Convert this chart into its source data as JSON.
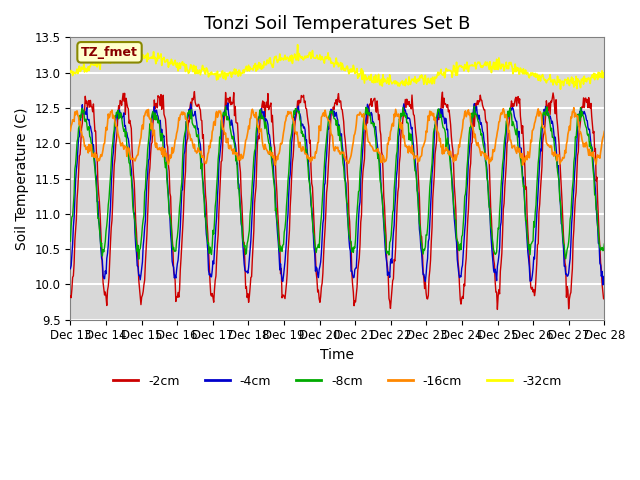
{
  "title": "Tonzi Soil Temperatures Set B",
  "xlabel": "Time",
  "ylabel": "Soil Temperature (C)",
  "ylim": [
    9.5,
    13.5
  ],
  "yticks": [
    9.5,
    10.0,
    10.5,
    11.0,
    11.5,
    12.0,
    12.5,
    13.0,
    13.5
  ],
  "xtick_labels": [
    "Dec 13",
    "Dec 14",
    "Dec 15",
    "Dec 16",
    "Dec 17",
    "Dec 18",
    "Dec 19",
    "Dec 20",
    "Dec 21",
    "Dec 22",
    "Dec 23",
    "Dec 24",
    "Dec 25",
    "Dec 26",
    "Dec 27",
    "Dec 28"
  ],
  "legend_label": "TZ_fmet",
  "series": [
    {
      "label": "-2cm",
      "color": "#cc0000"
    },
    {
      "label": "-4cm",
      "color": "#0000cc"
    },
    {
      "label": "-8cm",
      "color": "#00aa00"
    },
    {
      "label": "-16cm",
      "color": "#ff8800"
    },
    {
      "label": "-32cm",
      "color": "#ffff00"
    }
  ],
  "bg_color": "#d8d8d8",
  "title_fontsize": 13,
  "axis_fontsize": 10,
  "tick_fontsize": 8.5
}
